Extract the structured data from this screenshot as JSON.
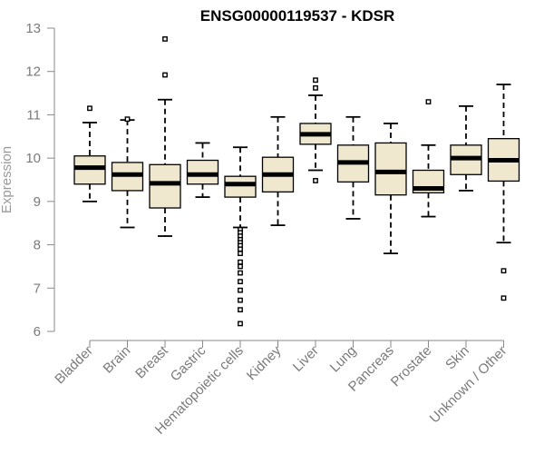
{
  "chart_data": {
    "type": "boxplot",
    "title": "ENSG00000119537 - KDSR",
    "ylabel": "Expression",
    "xlabel": "",
    "ylim": [
      6,
      13
    ],
    "yticks": [
      6,
      7,
      8,
      9,
      10,
      11,
      12,
      13
    ],
    "categories": [
      "Bladder",
      "Brain",
      "Breast",
      "Gastric",
      "Hematopoietic cells",
      "Kidney",
      "Liver",
      "Lung",
      "Pancreas",
      "Prostate",
      "Skin",
      "Unknown / Other"
    ],
    "boxes": [
      {
        "category": "Bladder",
        "whisker_low": 9.0,
        "q1": 9.4,
        "median": 9.78,
        "q3": 10.05,
        "whisker_high": 10.82,
        "outliers": [
          11.15
        ]
      },
      {
        "category": "Brain",
        "whisker_low": 8.4,
        "q1": 9.25,
        "median": 9.62,
        "q3": 9.9,
        "whisker_high": 10.88,
        "outliers": [
          10.9
        ]
      },
      {
        "category": "Breast",
        "whisker_low": 8.2,
        "q1": 8.85,
        "median": 9.42,
        "q3": 9.85,
        "whisker_high": 11.35,
        "outliers": [
          11.92,
          12.75
        ]
      },
      {
        "category": "Gastric",
        "whisker_low": 9.1,
        "q1": 9.4,
        "median": 9.62,
        "q3": 9.95,
        "whisker_high": 10.35,
        "outliers": []
      },
      {
        "category": "Hematopoietic cells",
        "whisker_low": 8.4,
        "q1": 9.1,
        "median": 9.4,
        "q3": 9.58,
        "whisker_high": 10.25,
        "outliers": [
          8.35,
          8.28,
          8.2,
          8.12,
          8.05,
          7.98,
          7.9,
          7.8,
          7.6,
          7.5,
          7.35,
          7.15,
          6.95,
          6.72,
          6.5,
          6.18
        ]
      },
      {
        "category": "Kidney",
        "whisker_low": 8.45,
        "q1": 9.22,
        "median": 9.62,
        "q3": 10.02,
        "whisker_high": 10.95,
        "outliers": []
      },
      {
        "category": "Liver",
        "whisker_low": 9.72,
        "q1": 10.32,
        "median": 10.55,
        "q3": 10.8,
        "whisker_high": 11.45,
        "outliers": [
          9.48,
          11.62,
          11.8
        ]
      },
      {
        "category": "Lung",
        "whisker_low": 8.6,
        "q1": 9.45,
        "median": 9.9,
        "q3": 10.3,
        "whisker_high": 10.95,
        "outliers": []
      },
      {
        "category": "Pancreas",
        "whisker_low": 7.8,
        "q1": 9.15,
        "median": 9.68,
        "q3": 10.35,
        "whisker_high": 10.8,
        "outliers": []
      },
      {
        "category": "Prostate",
        "whisker_low": 8.65,
        "q1": 9.2,
        "median": 9.3,
        "q3": 9.72,
        "whisker_high": 10.3,
        "outliers": [
          11.3
        ]
      },
      {
        "category": "Skin",
        "whisker_low": 9.25,
        "q1": 9.62,
        "median": 10.0,
        "q3": 10.3,
        "whisker_high": 11.2,
        "outliers": []
      },
      {
        "category": "Unknown / Other",
        "whisker_low": 8.05,
        "q1": 9.47,
        "median": 9.95,
        "q3": 10.45,
        "whisker_high": 11.7,
        "outliers": [
          7.4,
          6.77
        ]
      }
    ],
    "colors": {
      "box_fill": "#efe8cf",
      "box_stroke": "#000000",
      "axis": "#8a8a8a",
      "tick_text": "#7a7a7a"
    },
    "grid": false,
    "legend": "none"
  }
}
